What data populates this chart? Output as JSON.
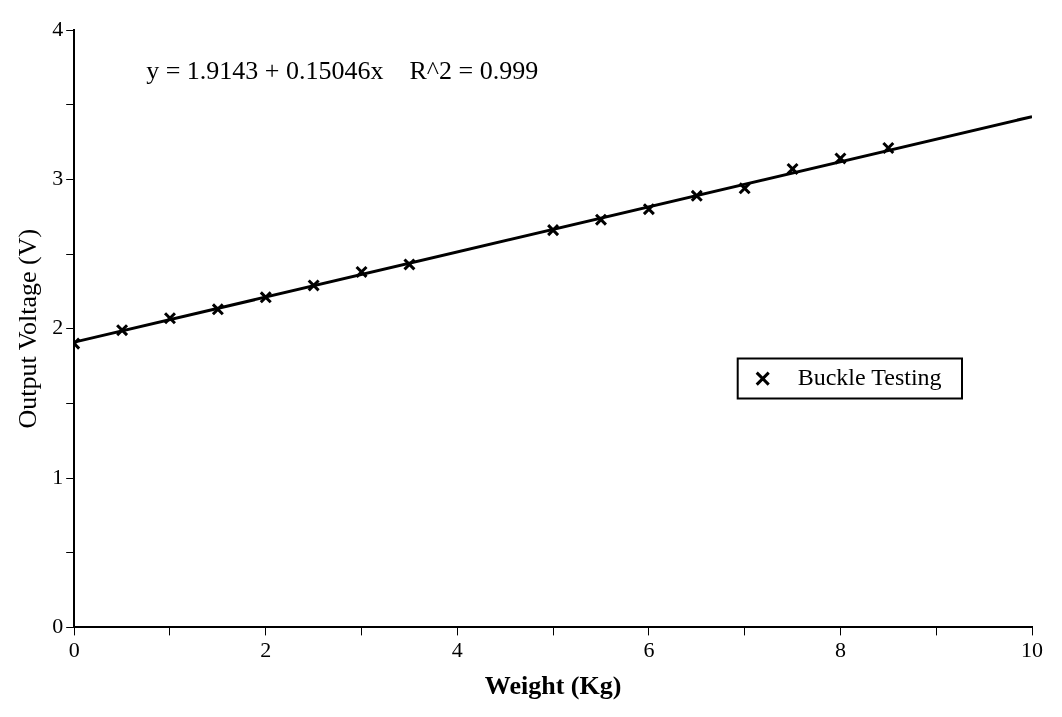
{
  "chart_data": {
    "type": "scatter",
    "xlabel": "Weight (Kg)",
    "ylabel": "Output Voltage (V)",
    "annotations": [
      "y = 1.9143 + 0.15046x    R^2 = 0.999"
    ],
    "xlim": [
      0,
      10
    ],
    "ylim": [
      0,
      4
    ],
    "xticks": [
      0,
      {
        "value": 1,
        "label": null
      },
      2,
      {
        "value": 3,
        "label": null
      },
      4,
      {
        "value": 5,
        "label": null
      },
      6,
      {
        "value": 7,
        "label": null
      },
      8,
      {
        "value": 9,
        "label": null
      },
      10
    ],
    "yticks": [
      0,
      {
        "value": 0.5,
        "label": null
      },
      1,
      {
        "value": 1.5,
        "label": null
      },
      2,
      {
        "value": 2.5,
        "label": null
      },
      3,
      {
        "value": 3.5,
        "label": null
      },
      4
    ],
    "grid": false,
    "legend": "right",
    "marker": "cross",
    "series": [
      {
        "name": "Buckle Testing",
        "color": "#000000",
        "x": [
          0,
          0.5,
          1,
          1.5,
          2,
          2.5,
          3,
          3.5,
          5,
          5.5,
          6,
          6.5,
          7,
          7.5,
          8,
          8.5
        ],
        "values": [
          1.9,
          1.99,
          2.07,
          2.13,
          2.21,
          2.29,
          2.38,
          2.43,
          2.66,
          2.73,
          2.8,
          2.89,
          2.94,
          3.07,
          3.14,
          3.21
        ]
      },
      {
        "type": "line",
        "marker": "none",
        "color": "#000000",
        "x": [
          0,
          10
        ],
        "values": [
          1.91,
          3.42
        ]
      }
    ]
  }
}
